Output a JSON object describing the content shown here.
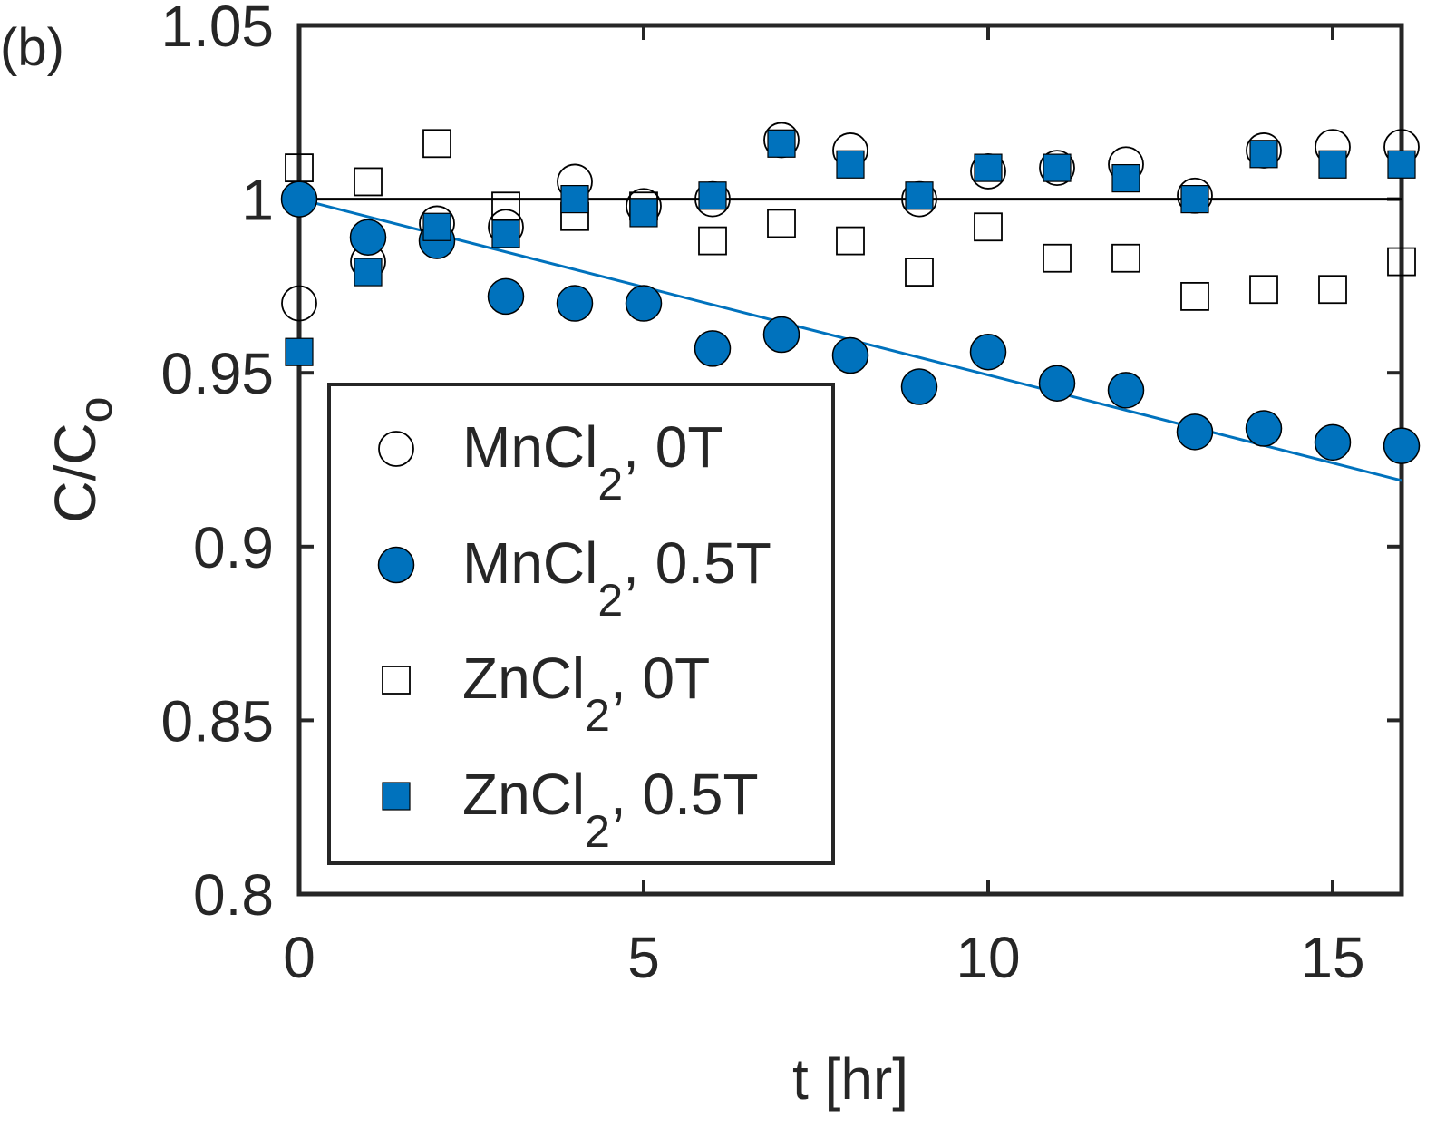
{
  "panel_label": "(b)",
  "chart_data": {
    "type": "scatter",
    "title": "",
    "xlabel": "t [hr]",
    "ylabel": {
      "main": "C/C",
      "sub": "o"
    },
    "xlim": [
      0,
      16
    ],
    "ylim": [
      0.8,
      1.05
    ],
    "xticks": [
      0,
      5,
      10,
      15
    ],
    "yticks": [
      0.8,
      0.85,
      0.9,
      0.95,
      1,
      1.05
    ],
    "xtick_labels": [
      "0",
      "5",
      "10",
      "15"
    ],
    "ytick_labels": [
      "0.8",
      "0.85",
      "0.9",
      "0.95",
      "1",
      "1.05"
    ],
    "grid": false,
    "legend_position": "bottom-left",
    "series": [
      {
        "name": "MnCl2, 0T",
        "legend": {
          "base": "MnCl",
          "sub": "2",
          "suffix": ", 0T"
        },
        "marker": "circle",
        "filled": false,
        "x": [
          0,
          1,
          2,
          3,
          4,
          5,
          6,
          7,
          8,
          9,
          10,
          11,
          12,
          13,
          14,
          15,
          16
        ],
        "y": [
          0.97,
          0.982,
          0.993,
          0.992,
          1.005,
          0.998,
          1.0,
          1.017,
          1.014,
          1.0,
          1.008,
          1.009,
          1.01,
          1.001,
          1.014,
          1.015,
          1.015
        ]
      },
      {
        "name": "MnCl2, 0.5T",
        "legend": {
          "base": "MnCl",
          "sub": "2",
          "suffix": ", 0.5T"
        },
        "marker": "circle",
        "filled": true,
        "x": [
          0,
          1,
          2,
          3,
          4,
          5,
          6,
          7,
          8,
          9,
          10,
          11,
          12,
          13,
          14,
          15,
          16
        ],
        "y": [
          1.0,
          0.989,
          0.988,
          0.972,
          0.97,
          0.97,
          0.957,
          0.961,
          0.955,
          0.946,
          0.956,
          0.947,
          0.945,
          0.933,
          0.934,
          0.93,
          0.929
        ]
      },
      {
        "name": "ZnCl2, 0T",
        "legend": {
          "base": "ZnCl",
          "sub": "2",
          "suffix": ", 0T"
        },
        "marker": "square",
        "filled": false,
        "x": [
          0,
          1,
          2,
          3,
          4,
          5,
          6,
          7,
          8,
          9,
          10,
          11,
          12,
          13,
          14,
          15,
          16
        ],
        "y": [
          1.009,
          1.005,
          1.016,
          0.998,
          0.995,
          0.998,
          0.988,
          0.993,
          0.988,
          0.979,
          0.992,
          0.983,
          0.983,
          0.972,
          0.974,
          0.974,
          0.982
        ]
      },
      {
        "name": "ZnCl2, 0.5T",
        "legend": {
          "base": "ZnCl",
          "sub": "2",
          "suffix": ", 0.5T"
        },
        "marker": "square",
        "filled": true,
        "x": [
          0,
          1,
          2,
          3,
          4,
          5,
          6,
          7,
          8,
          9,
          10,
          11,
          12,
          13,
          14,
          15,
          16
        ],
        "y": [
          0.956,
          0.979,
          0.992,
          0.99,
          1.0,
          0.996,
          1.001,
          1.016,
          1.01,
          1.001,
          1.009,
          1.009,
          1.006,
          1.0,
          1.013,
          1.01,
          1.01
        ]
      }
    ],
    "reference_lines": [
      {
        "name": "baseline",
        "color": "#000000",
        "x": [
          0,
          16
        ],
        "y": [
          1.0,
          1.0
        ]
      },
      {
        "name": "linear-fit",
        "color": "#0072BD",
        "x": [
          0,
          16
        ],
        "y": [
          1.0,
          0.919
        ]
      }
    ]
  },
  "colors": {
    "fill": "#0072BD",
    "axis": "#262626",
    "marker_edge": "#000000"
  }
}
